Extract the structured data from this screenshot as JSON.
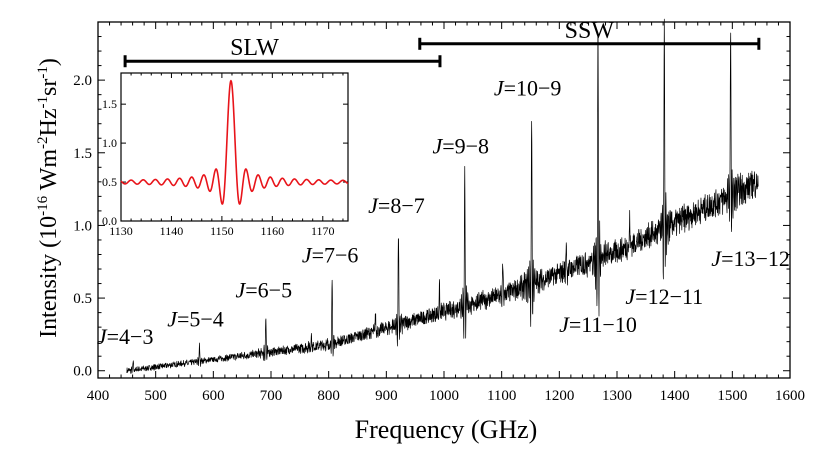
{
  "chart_data": [
    {
      "type": "line",
      "name": "main-spectrum",
      "xlabel": "Frequency (GHz)",
      "ylabel": {
        "prefix": "Intensity (10",
        "exp1": "-16",
        "mid1": " Wm",
        "exp2": "-2",
        "mid2": "Hz",
        "exp3": "-1",
        "mid3": "sr",
        "exp4": "-1",
        "suffix": ")"
      },
      "xlim": [
        400,
        1600
      ],
      "ylim": [
        -0.05,
        2.4
      ],
      "xticks": [
        {
          "value": 400,
          "label": "400"
        },
        {
          "value": 500,
          "label": "500"
        },
        {
          "value": 600,
          "label": "600"
        },
        {
          "value": 700,
          "label": "700"
        },
        {
          "value": 800,
          "label": "800"
        },
        {
          "value": 900,
          "label": "900"
        },
        {
          "value": 1000,
          "label": "1000"
        },
        {
          "value": 1100,
          "label": "1100"
        },
        {
          "value": 1200,
          "label": "1200"
        },
        {
          "value": 1300,
          "label": "1300"
        },
        {
          "value": 1400,
          "label": "1400"
        },
        {
          "value": 1500,
          "label": "1500"
        },
        {
          "value": 1600,
          "label": "1600"
        }
      ],
      "yticks": [
        {
          "value": 0.0,
          "label": "0.0"
        },
        {
          "value": 0.5,
          "label": "0.5"
        },
        {
          "value": 1.0,
          "label": "1.0"
        },
        {
          "value": 1.5,
          "label": "1.5"
        },
        {
          "value": 2.0,
          "label": "2.0"
        }
      ],
      "continuum": {
        "x": [
          450,
          800,
          1100,
          1300,
          1545
        ],
        "y": [
          0.0,
          0.18,
          0.52,
          0.82,
          1.3
        ]
      },
      "co_lines": [
        {
          "freq": 461,
          "peak": 0.06,
          "label": "J=4−3"
        },
        {
          "freq": 576,
          "peak": 0.18,
          "label": "J=5−4"
        },
        {
          "freq": 691,
          "peak": 0.38,
          "label": "J=6−5"
        },
        {
          "freq": 806,
          "peak": 0.62,
          "label": "J=7−6"
        },
        {
          "freq": 921,
          "peak": 0.96,
          "label": "J=8−7"
        },
        {
          "freq": 1036,
          "peak": 1.37,
          "label": "J=9−8"
        },
        {
          "freq": 1152,
          "peak": 1.77,
          "label": "J=10−9"
        },
        {
          "freq": 1267,
          "peak": 2.4,
          "label": "J=11−10"
        },
        {
          "freq": 1382,
          "peak": 2.4,
          "label": "J=12−11"
        },
        {
          "freq": 1497,
          "peak": 2.4,
          "label": "J=13−12"
        }
      ],
      "minor_lines": [
        {
          "freq": 556,
          "peak": 0.04
        },
        {
          "freq": 661,
          "peak": 0.1
        },
        {
          "freq": 770,
          "peak": 0.25
        },
        {
          "freq": 881,
          "peak": 0.4
        },
        {
          "freq": 992,
          "peak": 0.58
        },
        {
          "freq": 1102,
          "peak": 0.72
        },
        {
          "freq": 1212,
          "peak": 0.9
        },
        {
          "freq": 1322,
          "peak": 1.05
        }
      ],
      "bands": [
        {
          "name": "SLW",
          "label": "SLW",
          "start": 447,
          "end": 993,
          "y": 2.13
        },
        {
          "name": "SSW",
          "label": "SSW",
          "start": 958,
          "end": 1546,
          "y": 2.25
        }
      ]
    },
    {
      "type": "line",
      "name": "inset-sinc-line-profile",
      "color": "#e8141a",
      "xlim": [
        1130,
        1175
      ],
      "ylim": [
        0.0,
        1.9
      ],
      "xticks": [
        {
          "value": 1130,
          "label": "1130"
        },
        {
          "value": 1140,
          "label": "1140"
        },
        {
          "value": 1150,
          "label": "1150"
        },
        {
          "value": 1160,
          "label": "1160"
        },
        {
          "value": 1170,
          "label": "1170"
        }
      ],
      "yticks": [
        {
          "value": 0.0,
          "label": "0.0"
        },
        {
          "value": 0.5,
          "label": "0.5"
        },
        {
          "value": 1.0,
          "label": "1.0"
        },
        {
          "value": 1.5,
          "label": "1.5"
        }
      ],
      "center": 1151.8,
      "baseline": 0.5,
      "peak": 1.8,
      "fwhm_ghz": 1.2
    }
  ]
}
